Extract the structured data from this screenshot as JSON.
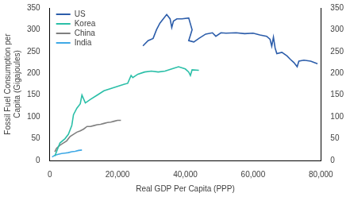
{
  "chart_data": {
    "type": "line",
    "xlabel": "Real GDP Per Capita (PPP)",
    "ylabel": [
      "Fossil Fuel Consumption per",
      "Capita (Gigajoules)"
    ],
    "xlim": [
      0,
      80000
    ],
    "xticks": [
      0,
      {
        "value": 20000,
        "label": "20,000"
      },
      {
        "value": 40000,
        "label": "40,000"
      },
      {
        "value": 60000,
        "label": "60,000"
      },
      {
        "value": 80000,
        "label": "80,000"
      }
    ],
    "ylim": [
      0,
      350
    ],
    "yticks": [
      0,
      50,
      100,
      150,
      200,
      250,
      300,
      350
    ],
    "y2lim": [
      0,
      350
    ],
    "y2ticks": [
      0,
      50,
      100,
      150,
      200,
      250,
      300,
      350
    ],
    "grid": false,
    "legend": "upper left",
    "series": [
      {
        "name": "US",
        "color": "#2c5daa",
        "x": [
          27500,
          29000,
          30500,
          31500,
          32500,
          33500,
          34500,
          35500,
          36000,
          36500,
          37500,
          39000,
          41000,
          42000,
          41000,
          42500,
          44000,
          46000,
          48000,
          49000,
          50500,
          52000,
          55000,
          57500,
          60000,
          62000,
          64000,
          65000,
          65500,
          66000,
          66500,
          67000,
          68500,
          70000,
          71000,
          72000,
          73000,
          73500,
          75000,
          77000,
          79000
        ],
        "values": [
          263,
          275,
          280,
          300,
          315,
          325,
          335,
          325,
          305,
          320,
          325,
          325,
          327,
          300,
          275,
          272,
          280,
          290,
          293,
          285,
          293,
          292,
          293,
          291,
          292,
          288,
          285,
          278,
          262,
          283,
          258,
          245,
          248,
          240,
          232,
          225,
          215,
          228,
          230,
          228,
          222
        ]
      },
      {
        "name": "Korea",
        "color": "#2bbfa8",
        "x": [
          1500,
          2000,
          3000,
          4500,
          5500,
          6500,
          7000,
          8000,
          9000,
          9500,
          10500,
          12000,
          14000,
          16000,
          18000,
          20000,
          22000,
          23000,
          24000,
          24500,
          26000,
          28000,
          30000,
          32000,
          34000,
          36000,
          38000,
          40000,
          41000,
          41500,
          42000,
          44000
        ],
        "values": [
          10,
          20,
          40,
          50,
          60,
          80,
          105,
          120,
          130,
          150,
          132,
          140,
          150,
          160,
          165,
          170,
          175,
          177,
          195,
          190,
          198,
          203,
          205,
          203,
          205,
          210,
          215,
          210,
          203,
          195,
          208,
          207
        ]
      },
      {
        "name": "China",
        "color": "#7f7f7f",
        "x": [
          1500,
          2000,
          3000,
          4000,
          5000,
          6000,
          7000,
          8000,
          9000,
          10000,
          11000,
          12000,
          13000,
          14000,
          15000,
          16000,
          17000,
          18000,
          19000,
          20000,
          21000
        ],
        "values": [
          20,
          28,
          35,
          40,
          45,
          55,
          60,
          65,
          68,
          72,
          78,
          78,
          80,
          82,
          83,
          85,
          87,
          88,
          90,
          92,
          92
        ]
      },
      {
        "name": "India",
        "color": "#3fa9e6",
        "x": [
          700,
          1500,
          2500,
          3500,
          4500,
          5500,
          6500,
          7500,
          8500,
          9500
        ],
        "values": [
          8,
          12,
          14,
          16,
          17,
          18,
          20,
          21,
          23,
          24
        ]
      }
    ]
  }
}
